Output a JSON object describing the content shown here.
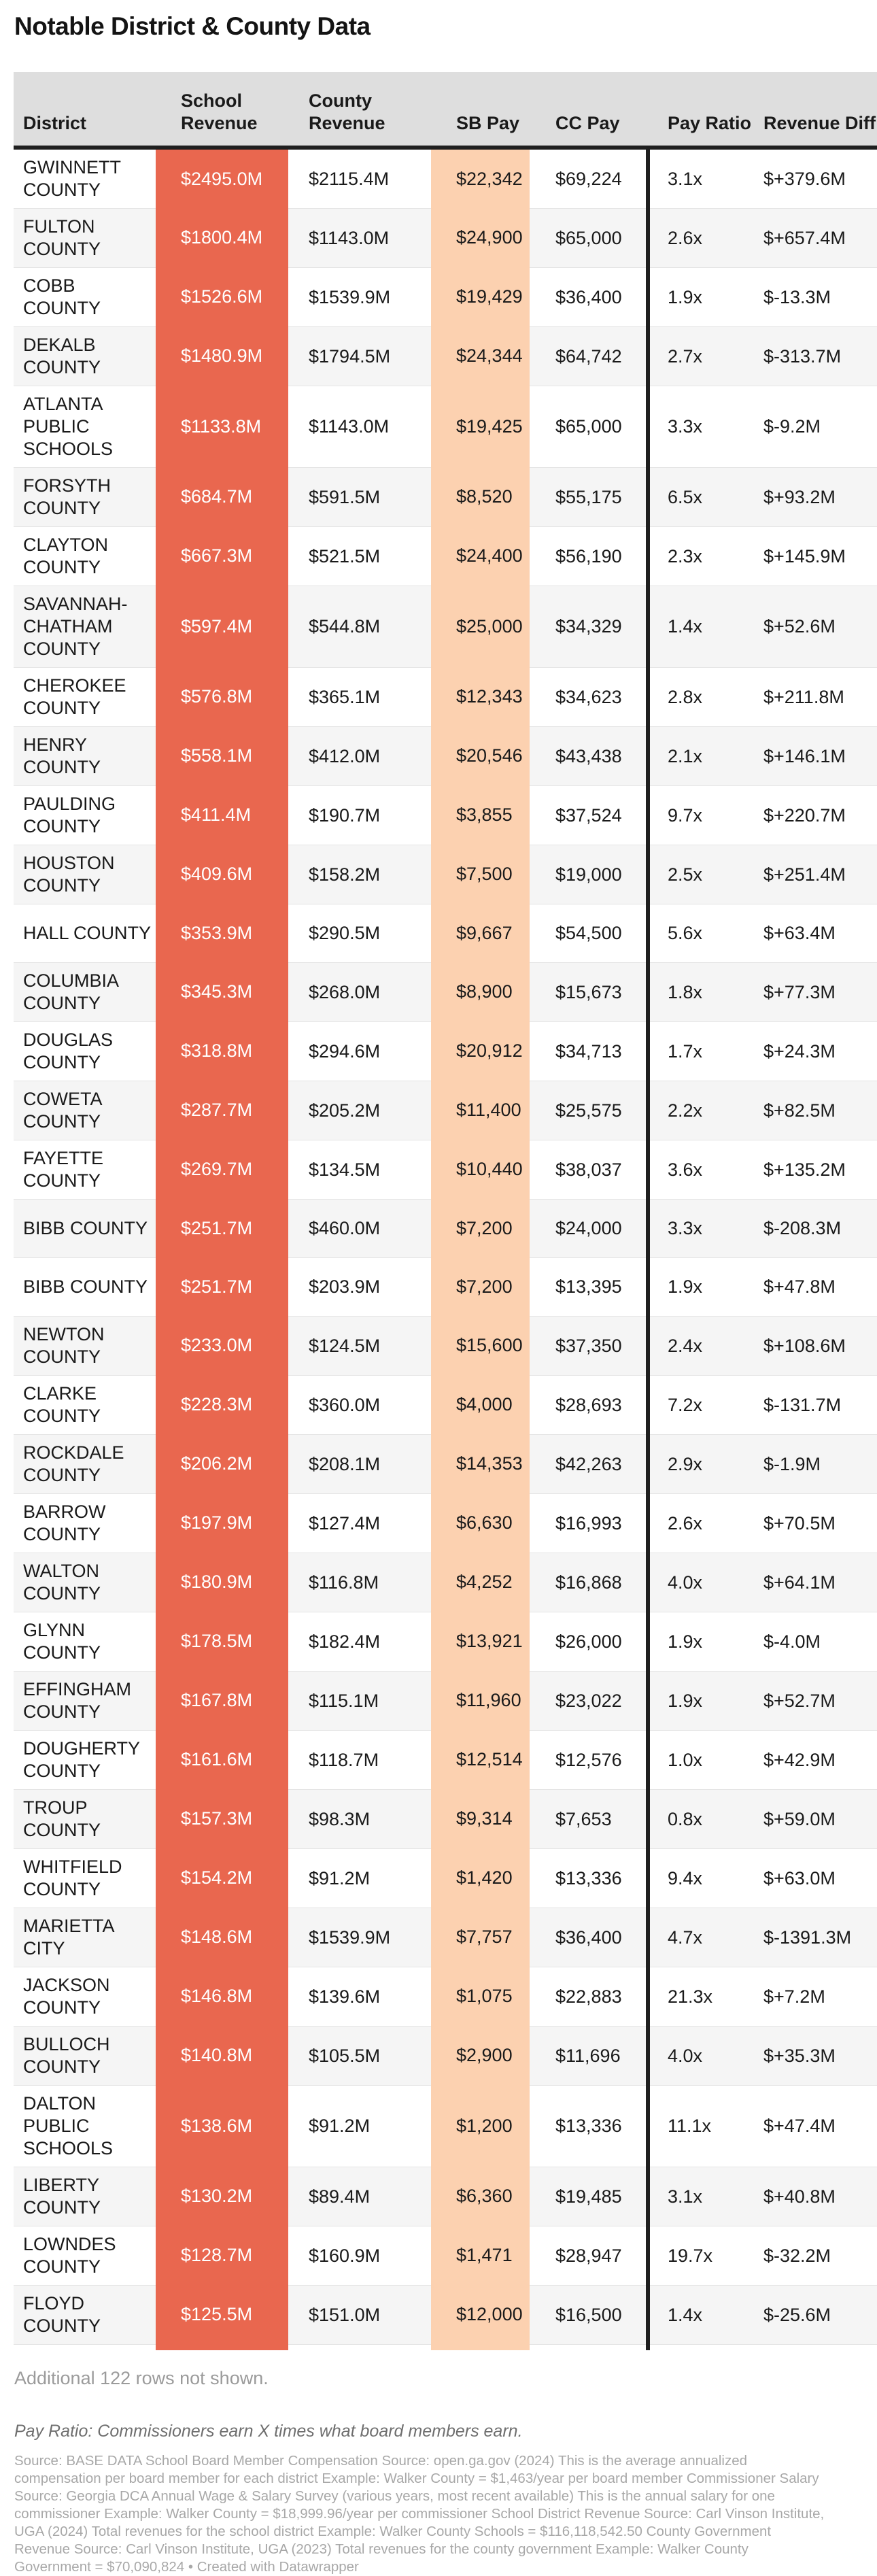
{
  "title": "Notable District & County Data",
  "colors": {
    "school_revenue_band": "#e9674f",
    "sb_pay_band": "#fcd1b0",
    "header_bg": "#dedede",
    "zebra_row": "#f5f5f5",
    "column_divider": "#1f1f1f",
    "muted_text": "#9b9b9b"
  },
  "chart_data": {
    "type": "table",
    "title": "Notable District & County Data",
    "columns": [
      "District",
      "School Revenue",
      "County Revenue",
      "SB Pay",
      "CC Pay",
      "Pay Ratio",
      "Revenue Diff"
    ],
    "rows": [
      {
        "district": "GWINNETT COUNTY",
        "school_revenue": "$2495.0M",
        "county_revenue": "$2115.4M",
        "sb_pay": "$22,342",
        "cc_pay": "$69,224",
        "pay_ratio": "3.1x",
        "revenue_diff": "$+379.6M"
      },
      {
        "district": "FULTON COUNTY",
        "school_revenue": "$1800.4M",
        "county_revenue": "$1143.0M",
        "sb_pay": "$24,900",
        "cc_pay": "$65,000",
        "pay_ratio": "2.6x",
        "revenue_diff": "$+657.4M"
      },
      {
        "district": "COBB COUNTY",
        "school_revenue": "$1526.6M",
        "county_revenue": "$1539.9M",
        "sb_pay": "$19,429",
        "cc_pay": "$36,400",
        "pay_ratio": "1.9x",
        "revenue_diff": "$-13.3M"
      },
      {
        "district": "DEKALB COUNTY",
        "school_revenue": "$1480.9M",
        "county_revenue": "$1794.5M",
        "sb_pay": "$24,344",
        "cc_pay": "$64,742",
        "pay_ratio": "2.7x",
        "revenue_diff": "$-313.7M"
      },
      {
        "district": "ATLANTA PUBLIC SCHOOLS",
        "school_revenue": "$1133.8M",
        "county_revenue": "$1143.0M",
        "sb_pay": "$19,425",
        "cc_pay": "$65,000",
        "pay_ratio": "3.3x",
        "revenue_diff": "$-9.2M"
      },
      {
        "district": "FORSYTH COUNTY",
        "school_revenue": "$684.7M",
        "county_revenue": "$591.5M",
        "sb_pay": "$8,520",
        "cc_pay": "$55,175",
        "pay_ratio": "6.5x",
        "revenue_diff": "$+93.2M"
      },
      {
        "district": "CLAYTON COUNTY",
        "school_revenue": "$667.3M",
        "county_revenue": "$521.5M",
        "sb_pay": "$24,400",
        "cc_pay": "$56,190",
        "pay_ratio": "2.3x",
        "revenue_diff": "$+145.9M"
      },
      {
        "district": "SAVANNAH-CHATHAM COUNTY",
        "school_revenue": "$597.4M",
        "county_revenue": "$544.8M",
        "sb_pay": "$25,000",
        "cc_pay": "$34,329",
        "pay_ratio": "1.4x",
        "revenue_diff": "$+52.6M"
      },
      {
        "district": "CHEROKEE COUNTY",
        "school_revenue": "$576.8M",
        "county_revenue": "$365.1M",
        "sb_pay": "$12,343",
        "cc_pay": "$34,623",
        "pay_ratio": "2.8x",
        "revenue_diff": "$+211.8M"
      },
      {
        "district": "HENRY COUNTY",
        "school_revenue": "$558.1M",
        "county_revenue": "$412.0M",
        "sb_pay": "$20,546",
        "cc_pay": "$43,438",
        "pay_ratio": "2.1x",
        "revenue_diff": "$+146.1M"
      },
      {
        "district": "PAULDING COUNTY",
        "school_revenue": "$411.4M",
        "county_revenue": "$190.7M",
        "sb_pay": "$3,855",
        "cc_pay": "$37,524",
        "pay_ratio": "9.7x",
        "revenue_diff": "$+220.7M"
      },
      {
        "district": "HOUSTON COUNTY",
        "school_revenue": "$409.6M",
        "county_revenue": "$158.2M",
        "sb_pay": "$7,500",
        "cc_pay": "$19,000",
        "pay_ratio": "2.5x",
        "revenue_diff": "$+251.4M"
      },
      {
        "district": "HALL COUNTY",
        "school_revenue": "$353.9M",
        "county_revenue": "$290.5M",
        "sb_pay": "$9,667",
        "cc_pay": "$54,500",
        "pay_ratio": "5.6x",
        "revenue_diff": "$+63.4M"
      },
      {
        "district": "COLUMBIA COUNTY",
        "school_revenue": "$345.3M",
        "county_revenue": "$268.0M",
        "sb_pay": "$8,900",
        "cc_pay": "$15,673",
        "pay_ratio": "1.8x",
        "revenue_diff": "$+77.3M"
      },
      {
        "district": "DOUGLAS COUNTY",
        "school_revenue": "$318.8M",
        "county_revenue": "$294.6M",
        "sb_pay": "$20,912",
        "cc_pay": "$34,713",
        "pay_ratio": "1.7x",
        "revenue_diff": "$+24.3M"
      },
      {
        "district": "COWETA COUNTY",
        "school_revenue": "$287.7M",
        "county_revenue": "$205.2M",
        "sb_pay": "$11,400",
        "cc_pay": "$25,575",
        "pay_ratio": "2.2x",
        "revenue_diff": "$+82.5M"
      },
      {
        "district": "FAYETTE COUNTY",
        "school_revenue": "$269.7M",
        "county_revenue": "$134.5M",
        "sb_pay": "$10,440",
        "cc_pay": "$38,037",
        "pay_ratio": "3.6x",
        "revenue_diff": "$+135.2M"
      },
      {
        "district": "BIBB COUNTY",
        "school_revenue": "$251.7M",
        "county_revenue": "$460.0M",
        "sb_pay": "$7,200",
        "cc_pay": "$24,000",
        "pay_ratio": "3.3x",
        "revenue_diff": "$-208.3M"
      },
      {
        "district": "BIBB COUNTY",
        "school_revenue": "$251.7M",
        "county_revenue": "$203.9M",
        "sb_pay": "$7,200",
        "cc_pay": "$13,395",
        "pay_ratio": "1.9x",
        "revenue_diff": "$+47.8M"
      },
      {
        "district": "NEWTON COUNTY",
        "school_revenue": "$233.0M",
        "county_revenue": "$124.5M",
        "sb_pay": "$15,600",
        "cc_pay": "$37,350",
        "pay_ratio": "2.4x",
        "revenue_diff": "$+108.6M"
      },
      {
        "district": "CLARKE COUNTY",
        "school_revenue": "$228.3M",
        "county_revenue": "$360.0M",
        "sb_pay": "$4,000",
        "cc_pay": "$28,693",
        "pay_ratio": "7.2x",
        "revenue_diff": "$-131.7M"
      },
      {
        "district": "ROCKDALE COUNTY",
        "school_revenue": "$206.2M",
        "county_revenue": "$208.1M",
        "sb_pay": "$14,353",
        "cc_pay": "$42,263",
        "pay_ratio": "2.9x",
        "revenue_diff": "$-1.9M"
      },
      {
        "district": "BARROW COUNTY",
        "school_revenue": "$197.9M",
        "county_revenue": "$127.4M",
        "sb_pay": "$6,630",
        "cc_pay": "$16,993",
        "pay_ratio": "2.6x",
        "revenue_diff": "$+70.5M"
      },
      {
        "district": "WALTON COUNTY",
        "school_revenue": "$180.9M",
        "county_revenue": "$116.8M",
        "sb_pay": "$4,252",
        "cc_pay": "$16,868",
        "pay_ratio": "4.0x",
        "revenue_diff": "$+64.1M"
      },
      {
        "district": "GLYNN COUNTY",
        "school_revenue": "$178.5M",
        "county_revenue": "$182.4M",
        "sb_pay": "$13,921",
        "cc_pay": "$26,000",
        "pay_ratio": "1.9x",
        "revenue_diff": "$-4.0M"
      },
      {
        "district": "EFFINGHAM COUNTY",
        "school_revenue": "$167.8M",
        "county_revenue": "$115.1M",
        "sb_pay": "$11,960",
        "cc_pay": "$23,022",
        "pay_ratio": "1.9x",
        "revenue_diff": "$+52.7M"
      },
      {
        "district": "DOUGHERTY COUNTY",
        "school_revenue": "$161.6M",
        "county_revenue": "$118.7M",
        "sb_pay": "$12,514",
        "cc_pay": "$12,576",
        "pay_ratio": "1.0x",
        "revenue_diff": "$+42.9M"
      },
      {
        "district": "TROUP COUNTY",
        "school_revenue": "$157.3M",
        "county_revenue": "$98.3M",
        "sb_pay": "$9,314",
        "cc_pay": "$7,653",
        "pay_ratio": "0.8x",
        "revenue_diff": "$+59.0M"
      },
      {
        "district": "WHITFIELD COUNTY",
        "school_revenue": "$154.2M",
        "county_revenue": "$91.2M",
        "sb_pay": "$1,420",
        "cc_pay": "$13,336",
        "pay_ratio": "9.4x",
        "revenue_diff": "$+63.0M"
      },
      {
        "district": "MARIETTA CITY",
        "school_revenue": "$148.6M",
        "county_revenue": "$1539.9M",
        "sb_pay": "$7,757",
        "cc_pay": "$36,400",
        "pay_ratio": "4.7x",
        "revenue_diff": "$-1391.3M"
      },
      {
        "district": "JACKSON COUNTY",
        "school_revenue": "$146.8M",
        "county_revenue": "$139.6M",
        "sb_pay": "$1,075",
        "cc_pay": "$22,883",
        "pay_ratio": "21.3x",
        "revenue_diff": "$+7.2M"
      },
      {
        "district": "BULLOCH COUNTY",
        "school_revenue": "$140.8M",
        "county_revenue": "$105.5M",
        "sb_pay": "$2,900",
        "cc_pay": "$11,696",
        "pay_ratio": "4.0x",
        "revenue_diff": "$+35.3M"
      },
      {
        "district": "DALTON PUBLIC SCHOOLS",
        "school_revenue": "$138.6M",
        "county_revenue": "$91.2M",
        "sb_pay": "$1,200",
        "cc_pay": "$13,336",
        "pay_ratio": "11.1x",
        "revenue_diff": "$+47.4M"
      },
      {
        "district": "LIBERTY COUNTY",
        "school_revenue": "$130.2M",
        "county_revenue": "$89.4M",
        "sb_pay": "$6,360",
        "cc_pay": "$19,485",
        "pay_ratio": "3.1x",
        "revenue_diff": "$+40.8M"
      },
      {
        "district": "LOWNDES COUNTY",
        "school_revenue": "$128.7M",
        "county_revenue": "$160.9M",
        "sb_pay": "$1,471",
        "cc_pay": "$28,947",
        "pay_ratio": "19.7x",
        "revenue_diff": "$-32.2M"
      },
      {
        "district": "FLOYD COUNTY",
        "school_revenue": "$125.5M",
        "county_revenue": "$151.0M",
        "sb_pay": "$12,000",
        "cc_pay": "$16,500",
        "pay_ratio": "1.4x",
        "revenue_diff": "$-25.6M"
      }
    ]
  },
  "footer": {
    "rows_note": "Additional 122 rows not shown.",
    "pay_ratio_note": "Pay Ratio: Commissioners earn X times what board members earn.",
    "source": "Source: BASE DATA School Board Member Compensation Source: open.ga.gov (2024) This is the average annualized compensation per board member for each district Example: Walker County = $1,463/year per board member Commissioner Salary Source: Georgia DCA Annual Wage & Salary Survey (various years, most recent available) This is the annual salary for one commissioner Example: Walker County = $18,999.96/year per commissioner School District Revenue Source: Carl Vinson Institute, UGA (2024) Total revenues for the school district Example: Walker County Schools = $116,118,542.50 County Government Revenue Source: Carl Vinson Institute, UGA (2023) Total revenues for the county government Example: Walker County Government = $70,090,824 • Created with Datawrapper"
  }
}
